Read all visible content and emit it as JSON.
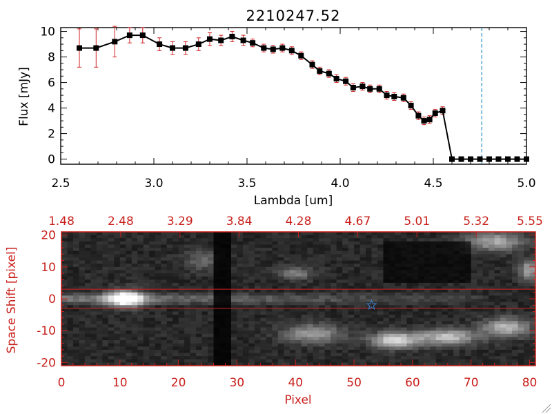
{
  "chart_data": [
    {
      "type": "line",
      "title": "2210247.52",
      "xlabel": "Lambda [um]",
      "ylabel": "Flux [mJy]",
      "xlim": [
        2.5,
        5.0
      ],
      "ylim": [
        -0.4,
        10.3
      ],
      "xticks": [
        "2.5",
        "3.0",
        "3.5",
        "4.0",
        "4.5",
        "5.0"
      ],
      "xtick_values": [
        2.5,
        3.0,
        3.5,
        4.0,
        4.5,
        5.0
      ],
      "yticks": [
        "0",
        "2",
        "4",
        "6",
        "8",
        "10"
      ],
      "ytick_values": [
        0,
        2,
        4,
        6,
        8,
        10
      ],
      "vline": 4.76,
      "colors": {
        "line": "#000000",
        "marker": "#000000",
        "errorbar": "#d02020",
        "vline": "#2a8fc0",
        "zero_line": "#d02020"
      },
      "x": [
        2.6,
        2.69,
        2.79,
        2.87,
        2.94,
        3.03,
        3.1,
        3.17,
        3.24,
        3.3,
        3.36,
        3.42,
        3.48,
        3.53,
        3.59,
        3.64,
        3.69,
        3.74,
        3.79,
        3.85,
        3.89,
        3.94,
        3.98,
        4.03,
        4.07,
        4.12,
        4.16,
        4.21,
        4.25,
        4.29,
        4.34,
        4.38,
        4.42,
        4.45,
        4.48,
        4.51,
        4.55,
        4.6,
        4.65,
        4.7,
        4.75,
        4.8,
        4.85,
        4.9,
        4.95,
        5.0
      ],
      "y": [
        8.7,
        8.7,
        9.2,
        9.7,
        9.7,
        9.0,
        8.7,
        8.7,
        9.0,
        9.4,
        9.3,
        9.6,
        9.3,
        9.1,
        8.7,
        8.6,
        8.7,
        8.5,
        8.1,
        7.4,
        6.9,
        6.7,
        6.3,
        6.1,
        5.6,
        5.7,
        5.5,
        5.5,
        5.0,
        4.9,
        4.8,
        4.2,
        3.4,
        3.0,
        3.1,
        3.6,
        3.8,
        0,
        0,
        0,
        0,
        0,
        0,
        0,
        0,
        0
      ],
      "yerr": [
        1.5,
        1.5,
        1.2,
        0.6,
        0.6,
        0.5,
        0.5,
        0.5,
        0.5,
        0.5,
        0.4,
        0.4,
        0.4,
        0.3,
        0.3,
        0.3,
        0.3,
        0.3,
        0.3,
        0.3,
        0.3,
        0.3,
        0.3,
        0.3,
        0.3,
        0.3,
        0.3,
        0.3,
        0.3,
        0.3,
        0.3,
        0.3,
        0.3,
        0.3,
        0.3,
        0.3,
        0.3,
        0.1,
        0.1,
        0.1,
        0.1,
        0.1,
        0.1,
        0.1,
        0.1,
        0.1
      ]
    },
    {
      "type": "heatmap",
      "xlabel": "Pixel",
      "ylabel": "Space Shift [pixel]",
      "xlim": [
        0,
        81
      ],
      "ylim": [
        -21,
        21
      ],
      "xticks": [
        "0",
        "10",
        "20",
        "30",
        "40",
        "50",
        "60",
        "70",
        "80"
      ],
      "xtick_values": [
        0,
        10,
        20,
        30,
        40,
        50,
        60,
        70,
        80
      ],
      "yticks": [
        "20",
        "10",
        "0",
        "-10",
        "-20"
      ],
      "ytick_values": [
        20,
        10,
        0,
        -10,
        -20
      ],
      "top_axis_labels": [
        "1.48",
        "2.48",
        "3.29",
        "3.84",
        "4.28",
        "4.67",
        "5.01",
        "5.32",
        "5.55"
      ],
      "extraction_band": [
        -3,
        3
      ],
      "marker": {
        "x": 53,
        "y": -2,
        "shape": "star"
      },
      "colors": {
        "axis": "#c8201c",
        "band": "#d02020",
        "marker": "#3a80d0"
      }
    }
  ]
}
